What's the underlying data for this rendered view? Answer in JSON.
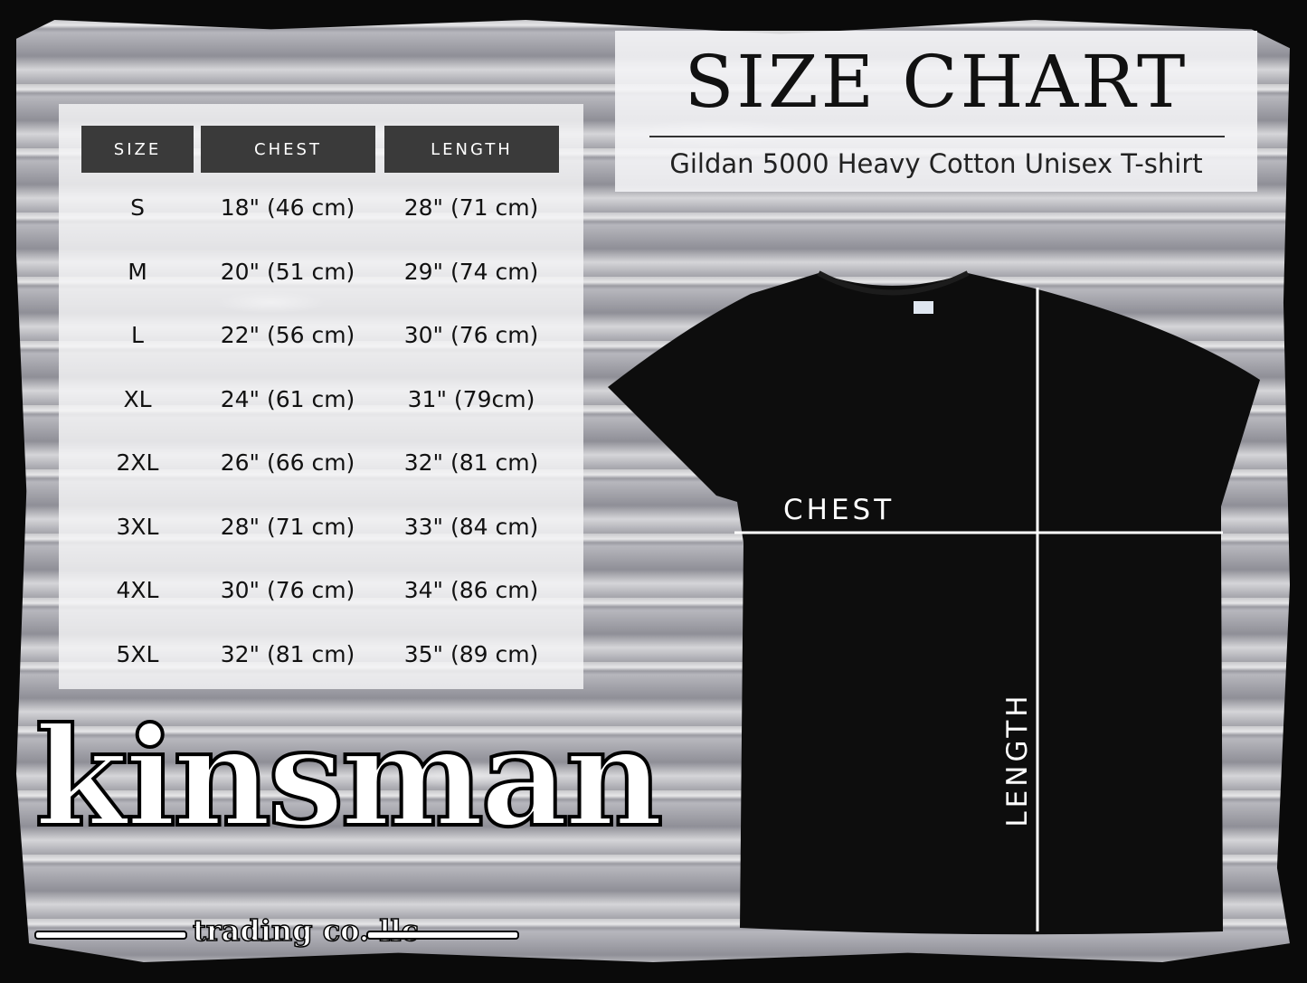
{
  "header": {
    "title": "SIZE CHART",
    "subtitle": "Gildan 5000 Heavy Cotton Unisex T-shirt"
  },
  "table": {
    "columns": [
      "SIZE",
      "CHEST",
      "LENGTH"
    ],
    "rows": [
      [
        "S",
        "18\" (46 cm)",
        "28\" (71 cm)"
      ],
      [
        "M",
        "20\" (51 cm)",
        "29\" (74 cm)"
      ],
      [
        "L",
        "22\" (56 cm)",
        "30\" (76 cm)"
      ],
      [
        "XL",
        "24\" (61 cm)",
        "31\" (79cm)"
      ],
      [
        "2XL",
        "26\" (66 cm)",
        "32\" (81 cm)"
      ],
      [
        "3XL",
        "28\" (71 cm)",
        "33\" (84 cm)"
      ],
      [
        "4XL",
        "30\" (76 cm)",
        "34\" (86 cm)"
      ],
      [
        "5XL",
        "32\" (81 cm)",
        "35\" (89 cm)"
      ]
    ]
  },
  "diagram": {
    "chest_label": "CHEST",
    "length_label": "LENGTH",
    "shirt_color": "#0d0d0d"
  },
  "logo": {
    "name": "kinsman",
    "tagline": "trading co. llc"
  }
}
